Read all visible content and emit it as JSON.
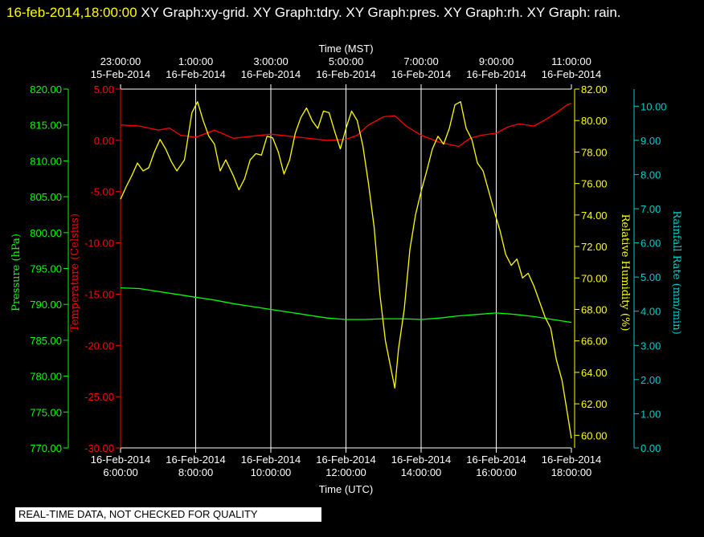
{
  "header": {
    "timestamp": "16-feb-2014,18:00:00",
    "rest": "  XY Graph:xy-grid.  XY Graph:tdry.  XY Graph:pres.  XY Graph:rh.  XY Graph: rain."
  },
  "footer_note": "REAL-TIME DATA, NOT CHECKED FOR QUALITY",
  "colors": {
    "background": "#000000",
    "grid": "#ffffff",
    "temperature": "#ff0000",
    "pressure": "#00ff00",
    "humidity": "#ffff00",
    "rain": "#00cccc"
  },
  "chart_data": {
    "type": "line",
    "x_bottom": {
      "label": "Time (UTC)",
      "ticks": [
        {
          "date": "16-Feb-2014",
          "time": "6:00:00"
        },
        {
          "date": "16-Feb-2014",
          "time": "8:00:00"
        },
        {
          "date": "16-Feb-2014",
          "time": "10:00:00"
        },
        {
          "date": "16-Feb-2014",
          "time": "12:00:00"
        },
        {
          "date": "16-Feb-2014",
          "time": "14:00:00"
        },
        {
          "date": "16-Feb-2014",
          "time": "16:00:00"
        },
        {
          "date": "16-Feb-2014",
          "time": "18:00:00"
        }
      ]
    },
    "x_top": {
      "label": "Time (MST)",
      "ticks": [
        {
          "time": "23:00:00",
          "date": "15-Feb-2014"
        },
        {
          "time": "1:00:00",
          "date": "16-Feb-2014"
        },
        {
          "time": "3:00:00",
          "date": "16-Feb-2014"
        },
        {
          "time": "5:00:00",
          "date": "16-Feb-2014"
        },
        {
          "time": "7:00:00",
          "date": "16-Feb-2014"
        },
        {
          "time": "9:00:00",
          "date": "16-Feb-2014"
        },
        {
          "time": "11:00:00",
          "date": "16-Feb-2014"
        }
      ]
    },
    "axes": {
      "pressure": {
        "label": "Pressure (hPa)",
        "ticks": [
          "770.00",
          "775.00",
          "780.00",
          "785.00",
          "790.00",
          "795.00",
          "800.00",
          "805.00",
          "810.00",
          "815.00",
          "820.00"
        ],
        "range": [
          770,
          820
        ]
      },
      "temperature": {
        "label": "Temperature (Celsius)",
        "ticks": [
          "-30.00",
          "-25.00",
          "-20.00",
          "-15.00",
          "-10.00",
          "-5.00",
          "0.00",
          "5.00"
        ],
        "range": [
          -30,
          5
        ]
      },
      "humidity": {
        "label": "Relative Humidity (%)",
        "ticks": [
          "60.00",
          "62.00",
          "64.00",
          "66.00",
          "68.00",
          "70.00",
          "72.00",
          "74.00",
          "76.00",
          "78.00",
          "80.00",
          "82.00"
        ],
        "range": [
          59.2,
          82
        ]
      },
      "rain": {
        "label": "Rainfall Rate (mm/min)",
        "ticks": [
          "0.00",
          "1.00",
          "2.00",
          "3.00",
          "4.00",
          "5.00",
          "6.00",
          "7.00",
          "8.00",
          "9.00",
          "10.00"
        ],
        "range": [
          0,
          10.5
        ]
      }
    },
    "x_hours_utc": [
      6,
      18
    ],
    "grid": true,
    "series": [
      {
        "name": "tdry",
        "axis": "temperature",
        "points": [
          [
            6.0,
            1.5
          ],
          [
            6.5,
            1.4
          ],
          [
            7.0,
            1.0
          ],
          [
            7.3,
            1.2
          ],
          [
            7.6,
            0.5
          ],
          [
            8.0,
            0.3
          ],
          [
            8.5,
            1.0
          ],
          [
            9.0,
            0.2
          ],
          [
            9.5,
            0.4
          ],
          [
            10.0,
            0.6
          ],
          [
            10.5,
            0.4
          ],
          [
            11.0,
            0.2
          ],
          [
            11.5,
            0.0
          ],
          [
            12.0,
            0.1
          ],
          [
            12.3,
            0.5
          ],
          [
            12.6,
            1.5
          ],
          [
            13.0,
            2.3
          ],
          [
            13.3,
            2.4
          ],
          [
            13.6,
            1.4
          ],
          [
            14.0,
            0.5
          ],
          [
            14.5,
            -0.2
          ],
          [
            15.0,
            -0.6
          ],
          [
            15.3,
            0.2
          ],
          [
            15.6,
            0.5
          ],
          [
            16.0,
            0.7
          ],
          [
            16.3,
            1.3
          ],
          [
            16.6,
            1.6
          ],
          [
            17.0,
            1.4
          ],
          [
            17.3,
            2.0
          ],
          [
            17.6,
            2.7
          ],
          [
            17.9,
            3.5
          ],
          [
            18.0,
            3.6
          ]
        ]
      },
      {
        "name": "pres",
        "axis": "pressure",
        "points": [
          [
            6.0,
            792.3
          ],
          [
            6.5,
            792.2
          ],
          [
            7.0,
            791.8
          ],
          [
            7.5,
            791.4
          ],
          [
            8.0,
            791.0
          ],
          [
            8.5,
            790.6
          ],
          [
            9.0,
            790.1
          ],
          [
            9.5,
            789.7
          ],
          [
            10.0,
            789.3
          ],
          [
            10.5,
            788.9
          ],
          [
            11.0,
            788.5
          ],
          [
            11.5,
            788.1
          ],
          [
            12.0,
            787.9
          ],
          [
            12.5,
            787.9
          ],
          [
            13.0,
            788.0
          ],
          [
            13.5,
            788.0
          ],
          [
            14.0,
            787.9
          ],
          [
            14.5,
            788.1
          ],
          [
            15.0,
            788.4
          ],
          [
            15.5,
            788.6
          ],
          [
            16.0,
            788.8
          ],
          [
            16.5,
            788.6
          ],
          [
            17.0,
            788.3
          ],
          [
            17.5,
            787.9
          ],
          [
            18.0,
            787.5
          ]
        ]
      },
      {
        "name": "rh",
        "axis": "humidity",
        "points": [
          [
            6.0,
            75.0
          ],
          [
            6.15,
            75.8
          ],
          [
            6.3,
            76.5
          ],
          [
            6.45,
            77.3
          ],
          [
            6.6,
            76.8
          ],
          [
            6.75,
            77.0
          ],
          [
            6.9,
            78.0
          ],
          [
            7.05,
            78.8
          ],
          [
            7.2,
            78.2
          ],
          [
            7.35,
            77.4
          ],
          [
            7.5,
            76.8
          ],
          [
            7.7,
            77.5
          ],
          [
            7.9,
            80.5
          ],
          [
            8.05,
            81.2
          ],
          [
            8.2,
            80.0
          ],
          [
            8.35,
            79.0
          ],
          [
            8.5,
            78.5
          ],
          [
            8.65,
            76.8
          ],
          [
            8.8,
            77.5
          ],
          [
            9.0,
            76.5
          ],
          [
            9.15,
            75.6
          ],
          [
            9.3,
            76.3
          ],
          [
            9.45,
            77.5
          ],
          [
            9.6,
            77.9
          ],
          [
            9.75,
            77.8
          ],
          [
            9.9,
            79.0
          ],
          [
            10.05,
            78.9
          ],
          [
            10.2,
            78.0
          ],
          [
            10.35,
            76.6
          ],
          [
            10.5,
            77.5
          ],
          [
            10.65,
            79.2
          ],
          [
            10.8,
            80.2
          ],
          [
            10.95,
            80.8
          ],
          [
            11.1,
            80.0
          ],
          [
            11.25,
            79.5
          ],
          [
            11.4,
            80.6
          ],
          [
            11.55,
            80.5
          ],
          [
            11.7,
            79.3
          ],
          [
            11.85,
            78.2
          ],
          [
            12.0,
            79.5
          ],
          [
            12.15,
            80.6
          ],
          [
            12.3,
            80.0
          ],
          [
            12.45,
            78.4
          ],
          [
            12.6,
            76.0
          ],
          [
            12.75,
            73.2
          ],
          [
            12.9,
            69.0
          ],
          [
            13.05,
            66.0
          ],
          [
            13.2,
            64.2
          ],
          [
            13.3,
            63.0
          ],
          [
            13.4,
            65.5
          ],
          [
            13.55,
            68.0
          ],
          [
            13.7,
            71.8
          ],
          [
            13.85,
            74.0
          ],
          [
            14.0,
            75.5
          ],
          [
            14.15,
            76.8
          ],
          [
            14.3,
            78.2
          ],
          [
            14.45,
            79.0
          ],
          [
            14.6,
            78.5
          ],
          [
            14.75,
            79.5
          ],
          [
            14.9,
            81.0
          ],
          [
            15.05,
            81.2
          ],
          [
            15.2,
            79.5
          ],
          [
            15.35,
            78.8
          ],
          [
            15.5,
            77.3
          ],
          [
            15.65,
            76.8
          ],
          [
            15.8,
            75.5
          ],
          [
            15.95,
            74.2
          ],
          [
            16.1,
            73.0
          ],
          [
            16.25,
            71.5
          ],
          [
            16.4,
            70.8
          ],
          [
            16.55,
            71.2
          ],
          [
            16.7,
            70.0
          ],
          [
            16.85,
            70.3
          ],
          [
            17.0,
            69.5
          ],
          [
            17.15,
            68.5
          ],
          [
            17.3,
            67.5
          ],
          [
            17.45,
            66.8
          ],
          [
            17.6,
            64.8
          ],
          [
            17.75,
            63.5
          ],
          [
            17.9,
            61.3
          ],
          [
            18.0,
            59.8
          ]
        ]
      }
    ]
  }
}
